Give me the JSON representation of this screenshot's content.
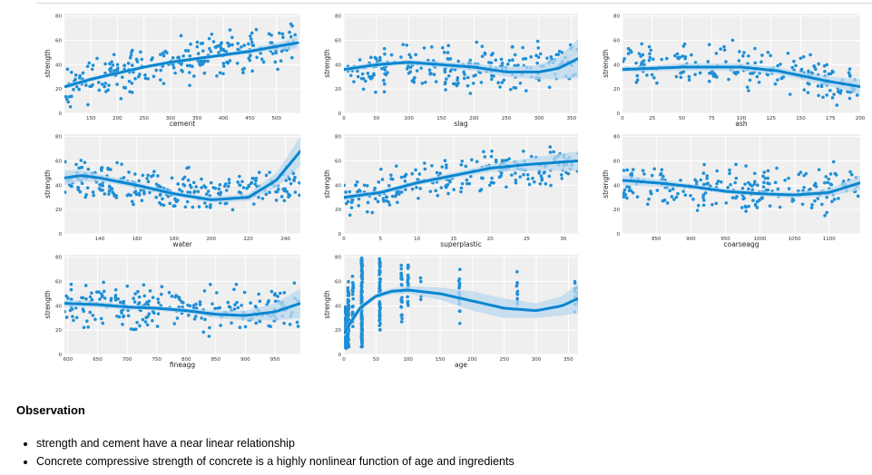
{
  "observation": {
    "title": "Observation",
    "bullets": [
      "strength and cement have a near linear relationship",
      "Concrete compressive strength of concrete is a highly nonlinear function of age and ingredients"
    ]
  },
  "colors": {
    "point": "#1f8fd6",
    "line": "#0a86d0",
    "band": "#b9d8ef",
    "panel": "#efefef"
  },
  "chart_data": [
    {
      "type": "scatter",
      "xlabel": "cement",
      "ylabel": "strength",
      "xlim": [
        100,
        545
      ],
      "ylim": [
        0,
        82
      ],
      "xticks": [
        150,
        200,
        250,
        300,
        350,
        400,
        450,
        500
      ],
      "yticks": [
        0,
        20,
        40,
        60,
        80
      ],
      "fit": [
        [
          102,
          22
        ],
        [
          150,
          28
        ],
        [
          200,
          33
        ],
        [
          250,
          38
        ],
        [
          300,
          42
        ],
        [
          350,
          45
        ],
        [
          400,
          48
        ],
        [
          450,
          51
        ],
        [
          500,
          55
        ],
        [
          540,
          58
        ]
      ],
      "band": [
        [
          102,
          2
        ],
        [
          200,
          1.5
        ],
        [
          300,
          1.5
        ],
        [
          400,
          1.5
        ],
        [
          450,
          2
        ],
        [
          500,
          3
        ],
        [
          540,
          5
        ]
      ],
      "points": {
        "x": [
          102,
          540
        ],
        "center": [
          [
            102,
            22
          ],
          [
            300,
            42
          ],
          [
            540,
            58
          ]
        ],
        "spread": 16,
        "n": 260
      }
    },
    {
      "type": "scatter",
      "xlabel": "slag",
      "ylabel": "strength",
      "xlim": [
        0,
        360
      ],
      "ylim": [
        0,
        82
      ],
      "xticks": [
        0,
        50,
        100,
        150,
        200,
        250,
        300,
        350
      ],
      "yticks": [
        0,
        20,
        40,
        60,
        80
      ],
      "fit": [
        [
          0,
          36
        ],
        [
          50,
          40
        ],
        [
          100,
          42
        ],
        [
          150,
          40
        ],
        [
          200,
          38
        ],
        [
          250,
          34
        ],
        [
          300,
          34
        ],
        [
          330,
          37
        ],
        [
          360,
          45
        ]
      ],
      "band": [
        [
          0,
          2
        ],
        [
          100,
          2
        ],
        [
          200,
          3
        ],
        [
          250,
          4
        ],
        [
          300,
          6
        ],
        [
          330,
          9
        ],
        [
          360,
          16
        ]
      ],
      "points": {
        "x": [
          0,
          360
        ],
        "center": [
          [
            0,
            35
          ],
          [
            150,
            38
          ],
          [
            360,
            40
          ]
        ],
        "spread": 16,
        "n": 240
      }
    },
    {
      "type": "scatter",
      "xlabel": "ash",
      "ylabel": "strength",
      "xlim": [
        0,
        200
      ],
      "ylim": [
        0,
        82
      ],
      "xticks": [
        0,
        25,
        50,
        75,
        100,
        125,
        150,
        175,
        200
      ],
      "yticks": [
        0,
        20,
        40,
        60,
        80
      ],
      "fit": [
        [
          0,
          36
        ],
        [
          50,
          38
        ],
        [
          100,
          38
        ],
        [
          130,
          35
        ],
        [
          150,
          31
        ],
        [
          175,
          26
        ],
        [
          200,
          22
        ]
      ],
      "band": [
        [
          0,
          2
        ],
        [
          50,
          3
        ],
        [
          100,
          3
        ],
        [
          150,
          3
        ],
        [
          175,
          4
        ],
        [
          200,
          6
        ]
      ],
      "points": {
        "x": [
          0,
          200
        ],
        "center": [
          [
            0,
            38
          ],
          [
            100,
            38
          ],
          [
            200,
            22
          ]
        ],
        "spread": 16,
        "n": 200
      }
    },
    {
      "type": "scatter",
      "xlabel": "water",
      "ylabel": "strength",
      "xlim": [
        121,
        248
      ],
      "ylim": [
        0,
        82
      ],
      "xticks": [
        140,
        160,
        180,
        200,
        220,
        240
      ],
      "yticks": [
        0,
        20,
        40,
        60,
        80
      ],
      "fit": [
        [
          121,
          46
        ],
        [
          130,
          48
        ],
        [
          140,
          46
        ],
        [
          160,
          40
        ],
        [
          180,
          33
        ],
        [
          200,
          28
        ],
        [
          220,
          30
        ],
        [
          235,
          44
        ],
        [
          248,
          68
        ]
      ],
      "band": [
        [
          121,
          6
        ],
        [
          140,
          3
        ],
        [
          180,
          2
        ],
        [
          220,
          3
        ],
        [
          235,
          6
        ],
        [
          248,
          12
        ]
      ],
      "points": {
        "x": [
          121,
          248
        ],
        "center": [
          [
            121,
            48
          ],
          [
            180,
            33
          ],
          [
            248,
            40
          ]
        ],
        "spread": 15,
        "n": 260
      }
    },
    {
      "type": "scatter",
      "xlabel": "superplastic",
      "ylabel": "strength",
      "xlim": [
        0,
        32
      ],
      "ylim": [
        0,
        82
      ],
      "xticks": [
        0,
        5,
        10,
        15,
        20,
        25,
        30
      ],
      "yticks": [
        0,
        20,
        40,
        60,
        80
      ],
      "fit": [
        [
          0,
          30
        ],
        [
          5,
          34
        ],
        [
          10,
          42
        ],
        [
          15,
          48
        ],
        [
          20,
          54
        ],
        [
          25,
          57
        ],
        [
          32,
          60
        ]
      ],
      "band": [
        [
          0,
          2
        ],
        [
          10,
          2
        ],
        [
          20,
          3
        ],
        [
          25,
          5
        ],
        [
          32,
          8
        ]
      ],
      "points": {
        "x": [
          0,
          32
        ],
        "center": [
          [
            0,
            30
          ],
          [
            10,
            42
          ],
          [
            32,
            60
          ]
        ],
        "spread": 15,
        "n": 230
      }
    },
    {
      "type": "scatter",
      "xlabel": "coarseagg",
      "ylabel": "strength",
      "xlim": [
        801,
        1145
      ],
      "ylim": [
        0,
        82
      ],
      "xticks": [
        850,
        900,
        950,
        1000,
        1050,
        1100
      ],
      "yticks": [
        0,
        20,
        40,
        60,
        80
      ],
      "fit": [
        [
          801,
          44
        ],
        [
          850,
          42
        ],
        [
          900,
          39
        ],
        [
          950,
          35
        ],
        [
          1000,
          33
        ],
        [
          1050,
          32
        ],
        [
          1100,
          34
        ],
        [
          1145,
          42
        ]
      ],
      "band": [
        [
          801,
          4
        ],
        [
          900,
          2
        ],
        [
          1000,
          2
        ],
        [
          1100,
          3
        ],
        [
          1145,
          6
        ]
      ],
      "points": {
        "x": [
          801,
          1145
        ],
        "center": [
          [
            801,
            42
          ],
          [
            950,
            35
          ],
          [
            1145,
            40
          ]
        ],
        "spread": 17,
        "n": 230
      }
    },
    {
      "type": "scatter",
      "xlabel": "fineagg",
      "ylabel": "strength",
      "xlim": [
        594,
        993
      ],
      "ylim": [
        0,
        82
      ],
      "xticks": [
        600,
        650,
        700,
        750,
        800,
        850,
        900,
        950
      ],
      "yticks": [
        0,
        20,
        40,
        60,
        80
      ],
      "fit": [
        [
          594,
          42
        ],
        [
          650,
          41
        ],
        [
          700,
          39
        ],
        [
          750,
          38
        ],
        [
          800,
          36
        ],
        [
          850,
          33
        ],
        [
          900,
          32
        ],
        [
          950,
          35
        ],
        [
          993,
          42
        ]
      ],
      "band": [
        [
          594,
          3
        ],
        [
          700,
          2
        ],
        [
          800,
          2
        ],
        [
          900,
          4
        ],
        [
          950,
          7
        ],
        [
          993,
          12
        ]
      ],
      "points": {
        "x": [
          594,
          993
        ],
        "center": [
          [
            594,
            42
          ],
          [
            780,
            37
          ],
          [
            993,
            38
          ]
        ],
        "spread": 16,
        "n": 250
      }
    },
    {
      "type": "scatter",
      "xlabel": "age",
      "ylabel": "strength",
      "xlim": [
        0,
        365
      ],
      "ylim": [
        0,
        82
      ],
      "xticks": [
        0,
        50,
        100,
        150,
        200,
        250,
        300,
        350
      ],
      "yticks": [
        0,
        20,
        40,
        60,
        80
      ],
      "fit": [
        [
          1,
          18
        ],
        [
          10,
          26
        ],
        [
          25,
          38
        ],
        [
          50,
          48
        ],
        [
          75,
          52
        ],
        [
          100,
          53
        ],
        [
          150,
          50
        ],
        [
          200,
          44
        ],
        [
          250,
          38
        ],
        [
          300,
          36
        ],
        [
          340,
          40
        ],
        [
          365,
          46
        ]
      ],
      "band": [
        [
          1,
          3
        ],
        [
          50,
          2
        ],
        [
          100,
          3
        ],
        [
          150,
          5
        ],
        [
          200,
          8
        ],
        [
          250,
          8
        ],
        [
          300,
          6
        ],
        [
          340,
          8
        ],
        [
          365,
          12
        ]
      ],
      "points": {
        "stacks": [
          [
            3,
            5,
            40,
            60
          ],
          [
            7,
            5,
            60,
            55
          ],
          [
            14,
            10,
            65,
            20
          ],
          [
            28,
            5,
            80,
            120
          ],
          [
            56,
            20,
            80,
            50
          ],
          [
            90,
            20,
            75,
            25
          ],
          [
            100,
            40,
            75,
            25
          ],
          [
            120,
            40,
            70,
            4
          ],
          [
            180,
            25,
            70,
            20
          ],
          [
            270,
            40,
            70,
            10
          ],
          [
            360,
            30,
            60,
            8
          ],
          [
            365,
            40,
            55,
            6
          ]
        ]
      }
    }
  ]
}
